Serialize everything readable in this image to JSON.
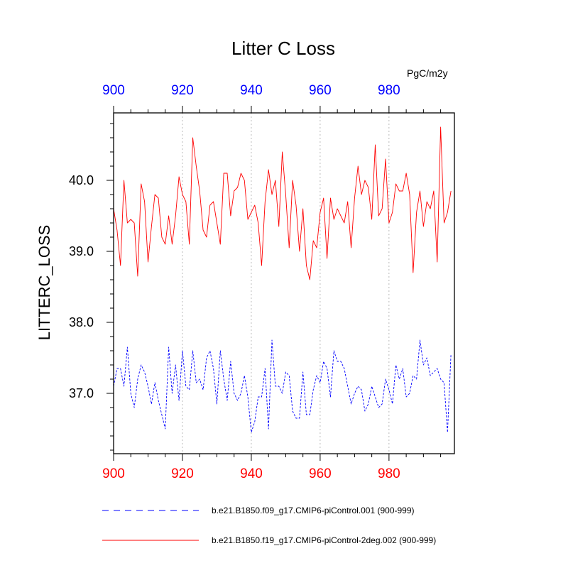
{
  "chart_data": {
    "type": "line",
    "title": "Litter C Loss",
    "units": "PgC/m2y",
    "ylabel": "LITTERC_LOSS",
    "xlabel": "",
    "xlim": [
      900,
      999
    ],
    "ylim": [
      36.15,
      40.95
    ],
    "x_ticks": [
      900,
      920,
      940,
      960,
      980
    ],
    "x_tick_labels": [
      "900",
      "920",
      "940",
      "960",
      "980"
    ],
    "y_ticks": [
      37.0,
      38.0,
      39.0,
      40.0
    ],
    "y_tick_labels": [
      "37.0",
      "38.0",
      "39.0",
      "40.0"
    ],
    "grid": "vertical dotted at major x ticks",
    "legend_position": "bottom",
    "series": [
      {
        "name": "b.e21.B1850.f19_g17.CMIP6-piControl-2deg.002 (900-999)",
        "color": "#ff0000",
        "dash": "solid",
        "x_start": 900,
        "values": [
          39.6,
          39.3,
          38.8,
          40.0,
          39.4,
          39.45,
          39.4,
          38.65,
          39.95,
          39.7,
          38.85,
          39.35,
          39.8,
          39.75,
          39.2,
          39.1,
          39.5,
          39.1,
          39.5,
          40.05,
          39.8,
          39.7,
          39.1,
          40.6,
          40.2,
          39.85,
          39.3,
          39.2,
          39.65,
          39.7,
          39.4,
          39.1,
          40.1,
          40.1,
          39.5,
          39.85,
          39.9,
          40.1,
          40.0,
          39.45,
          39.55,
          39.65,
          39.4,
          38.8,
          39.7,
          40.15,
          39.8,
          40.0,
          39.35,
          40.4,
          39.8,
          39.05,
          40.0,
          39.65,
          39.0,
          39.6,
          38.8,
          38.6,
          39.15,
          39.05,
          39.55,
          39.75,
          38.9,
          39.75,
          39.45,
          39.6,
          39.5,
          39.4,
          39.7,
          39.05,
          39.75,
          40.2,
          39.8,
          40.0,
          39.9,
          39.45,
          40.5,
          39.5,
          39.6,
          40.3,
          39.4,
          39.55,
          39.95,
          39.85,
          39.85,
          40.1,
          39.8,
          38.7,
          39.55,
          39.85,
          39.35,
          39.7,
          39.6,
          39.85,
          38.85,
          40.75,
          39.4,
          39.55,
          39.85
        ],
        "marks_label": "red series line"
      },
      {
        "name": "b.e21.B1850.f09_g17.CMIP6-piControl.001 (900-999)",
        "color": "#0000ff",
        "dash": "dashed",
        "x_start": 900,
        "values": [
          37.1,
          37.35,
          37.35,
          37.1,
          37.65,
          37.0,
          36.8,
          37.2,
          37.4,
          37.3,
          37.1,
          36.85,
          37.15,
          36.9,
          36.7,
          36.5,
          37.65,
          37.0,
          37.4,
          36.9,
          37.6,
          37.1,
          37.05,
          37.6,
          37.15,
          37.2,
          37.05,
          37.5,
          37.6,
          37.35,
          36.85,
          37.6,
          37.2,
          36.9,
          37.45,
          37.0,
          36.9,
          37.0,
          37.25,
          36.95,
          36.45,
          36.6,
          36.95,
          36.95,
          37.35,
          36.5,
          37.75,
          37.1,
          37.1,
          37.0,
          37.3,
          37.25,
          36.75,
          36.65,
          36.65,
          37.3,
          36.7,
          36.7,
          37.05,
          37.25,
          37.15,
          37.45,
          37.35,
          36.95,
          37.6,
          37.45,
          37.45,
          37.35,
          37.1,
          36.85,
          37.0,
          37.1,
          37.05,
          36.75,
          36.85,
          37.1,
          36.95,
          36.8,
          36.85,
          37.2,
          37.05,
          36.85,
          37.4,
          37.2,
          37.35,
          36.95,
          37.0,
          37.25,
          37.2,
          37.75,
          37.4,
          37.5,
          37.25,
          37.3,
          37.35,
          37.2,
          37.15,
          36.45,
          37.55
        ]
      }
    ]
  }
}
